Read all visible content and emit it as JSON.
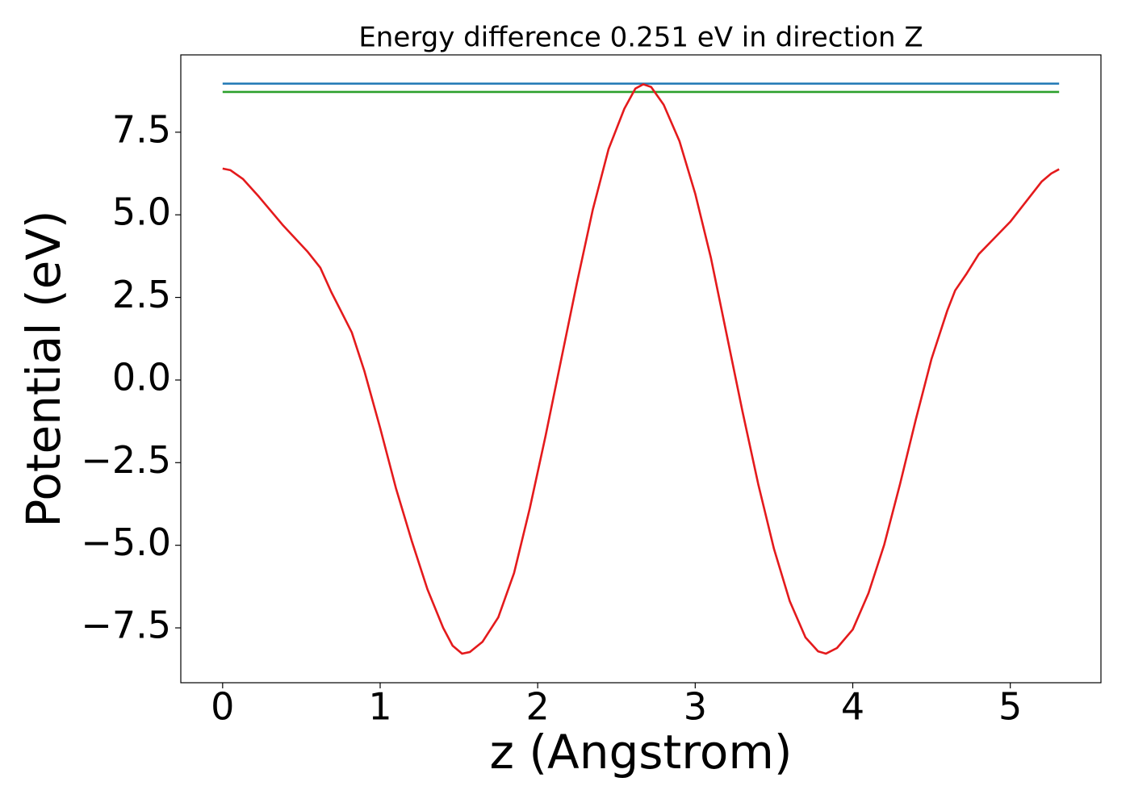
{
  "chart_data": {
    "type": "line",
    "title": "Energy difference 0.251 eV in direction Z",
    "xlabel": "z (Angstrom)",
    "ylabel": "Potential (eV)",
    "xlim": [
      -0.2655,
      5.5755
    ],
    "ylim": [
      -9.16,
      9.84
    ],
    "xticks": [
      0,
      1,
      2,
      3,
      4,
      5
    ],
    "yticks": [
      {
        "value": -7.5,
        "label": "−7.5"
      },
      {
        "value": -5.0,
        "label": "−5.0"
      },
      {
        "value": -2.5,
        "label": "−2.5"
      },
      {
        "value": 0,
        "label": "0.0"
      },
      2.5,
      {
        "value": 5.0,
        "label": "5.0"
      },
      7.5
    ],
    "grid": false,
    "series": [
      {
        "color": "#1f77b4",
        "x": [
          0,
          5.31
        ],
        "values": [
          8.97,
          8.97
        ]
      },
      {
        "color": "#2ca02c",
        "x": [
          0,
          5.31
        ],
        "values": [
          8.719,
          8.719
        ]
      },
      {
        "color": "#e41a1c",
        "x": [
          0,
          0.05,
          0.13,
          0.23,
          0.38,
          0.54,
          0.62,
          0.69,
          0.75,
          0.82,
          0.9,
          1.0,
          1.1,
          1.2,
          1.3,
          1.4,
          1.46,
          1.52,
          1.57,
          1.65,
          1.75,
          1.85,
          1.95,
          2.05,
          2.15,
          2.25,
          2.35,
          2.45,
          2.55,
          2.62,
          2.67,
          2.72,
          2.8,
          2.9,
          3.0,
          3.1,
          3.2,
          3.3,
          3.4,
          3.5,
          3.6,
          3.7,
          3.78,
          3.83,
          3.9,
          4.0,
          4.1,
          4.2,
          4.3,
          4.4,
          4.5,
          4.6,
          4.65,
          4.72,
          4.8,
          4.9,
          5.0,
          5.1,
          5.2,
          5.26,
          5.31
        ],
        "values": [
          6.4,
          6.35,
          6.08,
          5.55,
          4.7,
          3.88,
          3.4,
          2.66,
          2.1,
          1.44,
          0.27,
          -1.45,
          -3.27,
          -4.86,
          -6.33,
          -7.5,
          -8.04,
          -8.28,
          -8.23,
          -7.92,
          -7.18,
          -5.84,
          -3.88,
          -1.69,
          0.64,
          2.96,
          5.16,
          6.99,
          8.21,
          8.82,
          8.95,
          8.87,
          8.33,
          7.23,
          5.64,
          3.69,
          1.37,
          -0.95,
          -3.15,
          -5.11,
          -6.69,
          -7.79,
          -8.21,
          -8.28,
          -8.11,
          -7.55,
          -6.45,
          -4.98,
          -3.15,
          -1.2,
          0.64,
          2.1,
          2.71,
          3.2,
          3.81,
          4.3,
          4.79,
          5.4,
          6.01,
          6.25,
          6.38
        ]
      }
    ]
  }
}
